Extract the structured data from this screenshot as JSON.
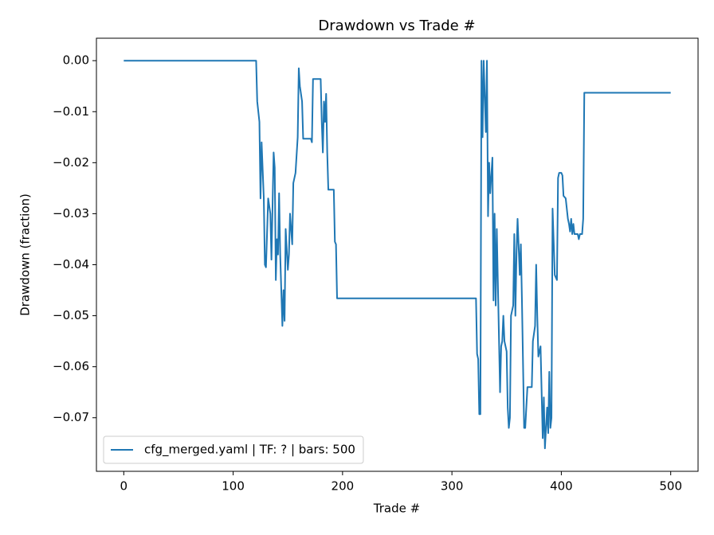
{
  "chart_data": {
    "type": "line",
    "title": "Drawdown vs Trade #",
    "x_label": "Trade #",
    "y_label": "Drawdown (fraction)",
    "xlim": [
      -25,
      525
    ],
    "ylim": [
      -0.0805,
      0.0044
    ],
    "xticks": [
      0,
      100,
      200,
      300,
      400,
      500
    ],
    "yticks": [
      {
        "value": 0,
        "label": "0.00"
      },
      {
        "value": -0.01,
        "label": "−0.01"
      },
      {
        "value": -0.02,
        "label": "−0.02"
      },
      {
        "value": -0.03,
        "label": "−0.03"
      },
      {
        "value": -0.04,
        "label": "−0.04"
      },
      {
        "value": -0.05,
        "label": "−0.05"
      },
      {
        "value": -0.06,
        "label": "−0.06"
      },
      {
        "value": -0.07,
        "label": "−0.07"
      }
    ],
    "legend_position": "lower left",
    "x": [
      0,
      121,
      122,
      124,
      125,
      126,
      128,
      129,
      130,
      132,
      134,
      135,
      137,
      138,
      139,
      140,
      141,
      142,
      143,
      145,
      146,
      147,
      148,
      150,
      151,
      152,
      154,
      155,
      157,
      159,
      160,
      161,
      163,
      164,
      171,
      172,
      173,
      180,
      181,
      182,
      183,
      184,
      185,
      186,
      187,
      192,
      193,
      194,
      195,
      322,
      323,
      324,
      325,
      326,
      327,
      328,
      329,
      331,
      332,
      333,
      334,
      335,
      337,
      338,
      339,
      340,
      341,
      344,
      345,
      346,
      347,
      348,
      350,
      351,
      352,
      353,
      354,
      356,
      357,
      358,
      359,
      360,
      362,
      363,
      364,
      366,
      367,
      369,
      373,
      374,
      376,
      377,
      378,
      379,
      381,
      383,
      384,
      385,
      387,
      388,
      389,
      390,
      391,
      392,
      394,
      396,
      397,
      398,
      400,
      401,
      402,
      404,
      406,
      407,
      408,
      409,
      410,
      411,
      412,
      415,
      416,
      417,
      419,
      420,
      421,
      500
    ],
    "series": [
      {
        "name": "cfg_merged.yaml | TF: ? | bars: 500",
        "color": "#1f77b4",
        "values": [
          0,
          0,
          -0.008,
          -0.012,
          -0.027,
          -0.016,
          -0.027,
          -0.04,
          -0.0405,
          -0.027,
          -0.03,
          -0.039,
          -0.018,
          -0.021,
          -0.043,
          -0.035,
          -0.038,
          -0.026,
          -0.038,
          -0.052,
          -0.045,
          -0.051,
          -0.033,
          -0.041,
          -0.038,
          -0.03,
          -0.036,
          -0.024,
          -0.022,
          -0.015,
          -0.0015,
          -0.005,
          -0.008,
          -0.0153,
          -0.0153,
          -0.016,
          -0.0036,
          -0.0036,
          -0.012,
          -0.018,
          -0.008,
          -0.012,
          -0.0065,
          -0.018,
          -0.0253,
          -0.0253,
          -0.0355,
          -0.036,
          -0.0466,
          -0.0466,
          -0.0575,
          -0.0585,
          -0.0693,
          -0.0693,
          0,
          -0.015,
          0,
          -0.014,
          0,
          -0.0305,
          -0.02,
          -0.026,
          -0.019,
          -0.047,
          -0.03,
          -0.048,
          -0.033,
          -0.065,
          -0.056,
          -0.055,
          -0.05,
          -0.055,
          -0.057,
          -0.068,
          -0.072,
          -0.07,
          -0.05,
          -0.048,
          -0.034,
          -0.05,
          -0.038,
          -0.031,
          -0.042,
          -0.036,
          -0.047,
          -0.072,
          -0.072,
          -0.064,
          -0.064,
          -0.055,
          -0.052,
          -0.04,
          -0.05,
          -0.058,
          -0.056,
          -0.074,
          -0.066,
          -0.076,
          -0.068,
          -0.073,
          -0.061,
          -0.072,
          -0.07,
          -0.029,
          -0.042,
          -0.043,
          -0.023,
          -0.022,
          -0.022,
          -0.0225,
          -0.0265,
          -0.027,
          -0.031,
          -0.032,
          -0.0335,
          -0.031,
          -0.034,
          -0.032,
          -0.034,
          -0.034,
          -0.035,
          -0.034,
          -0.034,
          -0.031,
          -0.0063,
          -0.0063
        ]
      }
    ]
  }
}
